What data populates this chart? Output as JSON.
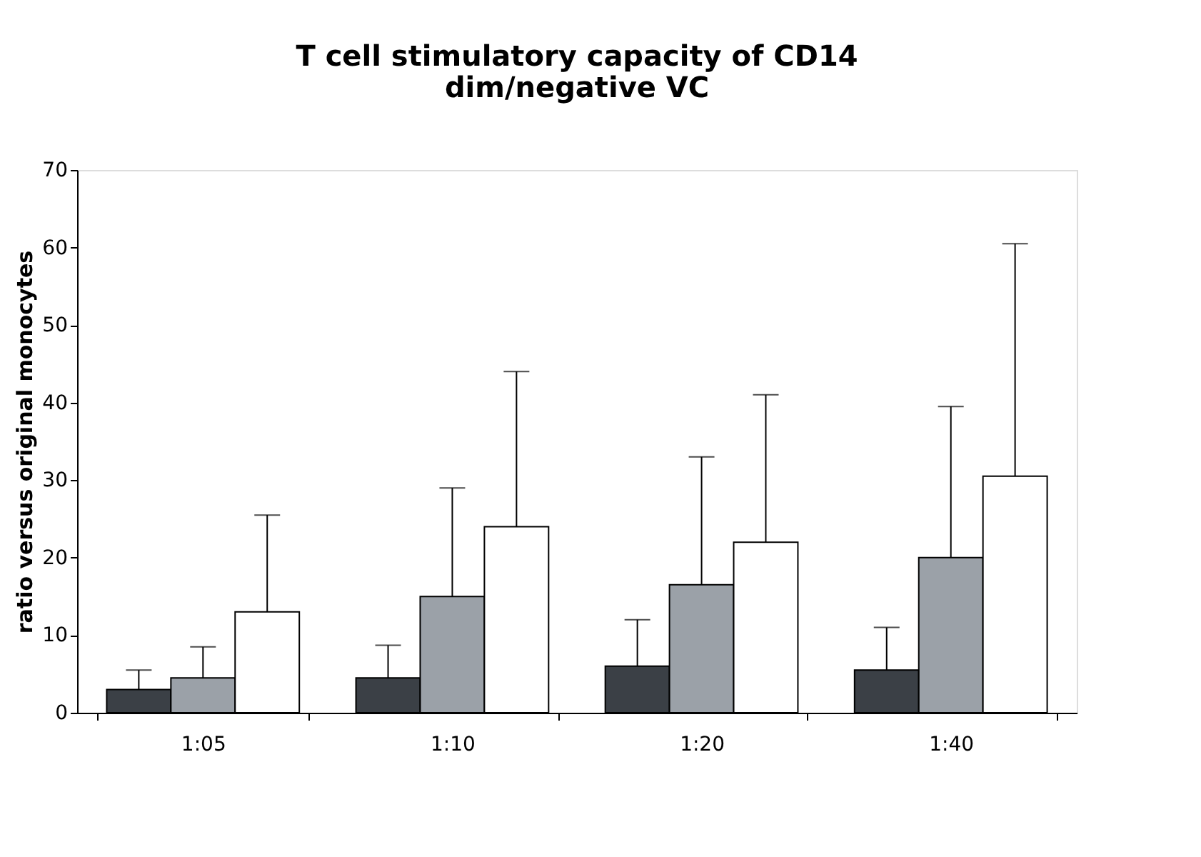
{
  "chart_data": {
    "type": "bar",
    "title": "T cell stimulatory capacity of CD14 dim/negative VC",
    "ylabel": "ratio versus original monocytes",
    "categories": [
      "1:05",
      "1:10",
      "1:20",
      "1:40"
    ],
    "series": [
      {
        "color": "#3b4046",
        "values": [
          3,
          4.5,
          6,
          5.5
        ],
        "errors": [
          [
            3,
            5.5
          ],
          [
            4.5,
            8.7
          ],
          [
            6,
            12
          ],
          [
            5.5,
            11
          ]
        ]
      },
      {
        "color": "#9ba1a8",
        "values": [
          4.5,
          15,
          16.5,
          20
        ],
        "errors": [
          [
            4.5,
            8.5
          ],
          [
            15,
            29
          ],
          [
            16.5,
            33
          ],
          [
            20,
            39.5
          ]
        ]
      },
      {
        "color": "#ffffff",
        "values": [
          13,
          24,
          22,
          30.5
        ],
        "errors": [
          [
            13,
            25.5
          ],
          [
            24,
            44
          ],
          [
            22,
            41
          ],
          [
            30.5,
            60.5
          ]
        ]
      }
    ],
    "ylim": [
      0,
      70
    ],
    "yticks": [
      0,
      10,
      20,
      30,
      40,
      50,
      60,
      70
    ],
    "grid": false,
    "legend": false
  }
}
